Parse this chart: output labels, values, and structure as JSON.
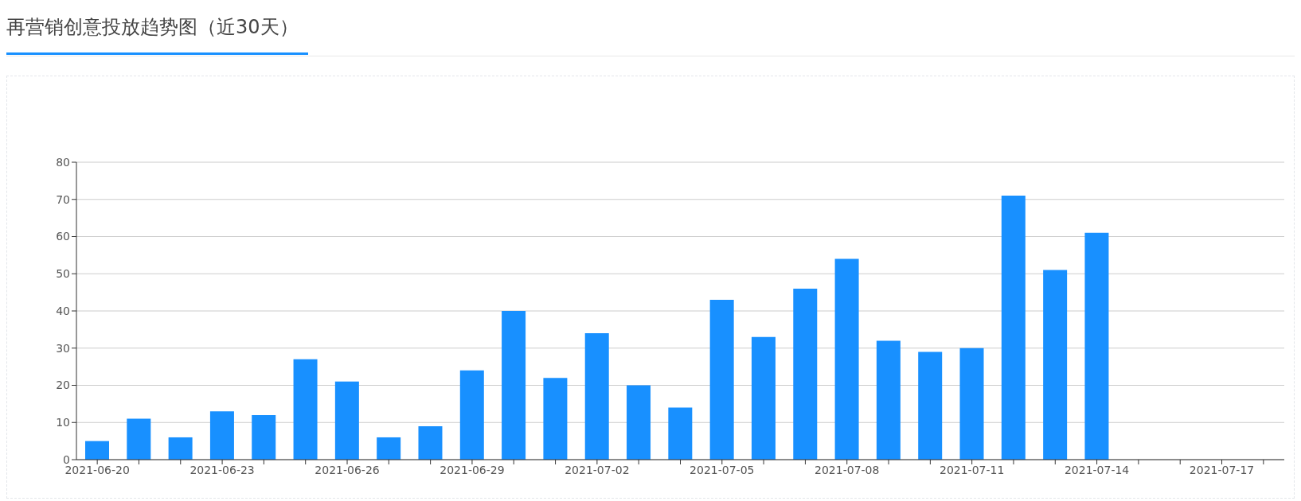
{
  "chart_data": {
    "type": "bar",
    "title": "再营销创意投放趋势图（近30天）",
    "categories": [
      "2021-06-20",
      null,
      null,
      "2021-06-23",
      null,
      null,
      "2021-06-26",
      null,
      null,
      "2021-06-29",
      null,
      null,
      "2021-07-02",
      null,
      null,
      "2021-07-05",
      null,
      null,
      "2021-07-08",
      null,
      null,
      "2021-07-11",
      null,
      null,
      "2021-07-14",
      null,
      null,
      "2021-07-17",
      null
    ],
    "values": [
      5,
      11,
      6,
      13,
      12,
      27,
      21,
      6,
      9,
      24,
      40,
      22,
      34,
      20,
      14,
      43,
      33,
      46,
      54,
      32,
      29,
      30,
      71,
      51,
      61,
      null,
      null,
      null,
      null
    ],
    "color": "#1890ff",
    "ylim": [
      0,
      80
    ],
    "yticks": [
      0,
      10,
      20,
      30,
      40,
      50,
      60,
      70,
      80
    ],
    "grid": "y"
  }
}
